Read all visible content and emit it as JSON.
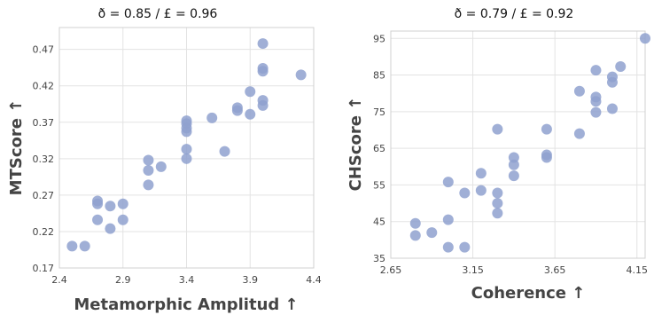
{
  "chart_data": [
    {
      "type": "scatter",
      "title": "ð = 0.85  /  £ = 0.96",
      "xlabel": "Metamorphic Amplitud ↑",
      "ylabel": "MTScore ↑",
      "xlim": [
        2.4,
        4.4
      ],
      "ylim": [
        0.17,
        0.5
      ],
      "xticks": [
        "2.4",
        "2.9",
        "3.4",
        "3.9",
        "4.4"
      ],
      "yticks": [
        "0.17",
        "0.22",
        "0.27",
        "0.32",
        "0.37",
        "0.42",
        "0.47"
      ],
      "xtick_values": [
        2.4,
        2.9,
        3.4,
        3.9,
        4.4
      ],
      "ytick_values": [
        0.17,
        0.22,
        0.27,
        0.32,
        0.37,
        0.42,
        0.47
      ],
      "grid": true,
      "color": "#8fa1cf",
      "points": [
        {
          "x": 2.5,
          "y": 0.2
        },
        {
          "x": 2.6,
          "y": 0.2
        },
        {
          "x": 2.7,
          "y": 0.262
        },
        {
          "x": 2.7,
          "y": 0.258
        },
        {
          "x": 2.7,
          "y": 0.236
        },
        {
          "x": 2.8,
          "y": 0.255
        },
        {
          "x": 2.8,
          "y": 0.224
        },
        {
          "x": 2.9,
          "y": 0.258
        },
        {
          "x": 2.9,
          "y": 0.236
        },
        {
          "x": 3.1,
          "y": 0.318
        },
        {
          "x": 3.1,
          "y": 0.304
        },
        {
          "x": 3.1,
          "y": 0.284
        },
        {
          "x": 3.2,
          "y": 0.309
        },
        {
          "x": 3.4,
          "y": 0.372
        },
        {
          "x": 3.4,
          "y": 0.368
        },
        {
          "x": 3.4,
          "y": 0.362
        },
        {
          "x": 3.4,
          "y": 0.357
        },
        {
          "x": 3.4,
          "y": 0.333
        },
        {
          "x": 3.4,
          "y": 0.32
        },
        {
          "x": 3.6,
          "y": 0.376
        },
        {
          "x": 3.7,
          "y": 0.33
        },
        {
          "x": 3.8,
          "y": 0.39
        },
        {
          "x": 3.8,
          "y": 0.386
        },
        {
          "x": 3.9,
          "y": 0.412
        },
        {
          "x": 3.9,
          "y": 0.381
        },
        {
          "x": 4.0,
          "y": 0.478
        },
        {
          "x": 4.0,
          "y": 0.444
        },
        {
          "x": 4.0,
          "y": 0.44
        },
        {
          "x": 4.0,
          "y": 0.4
        },
        {
          "x": 4.0,
          "y": 0.393
        },
        {
          "x": 4.3,
          "y": 0.435
        }
      ]
    },
    {
      "type": "scatter",
      "title": "ð = 0.79  /  £ = 0.92",
      "xlabel": "Coherence ↑",
      "ylabel": "CHScore ↑",
      "xlim": [
        2.65,
        4.2
      ],
      "ylim": [
        35,
        97
      ],
      "xticks": [
        "2.65",
        "3.15",
        "3.65",
        "4.15"
      ],
      "yticks": [
        "35",
        "45",
        "55",
        "65",
        "75",
        "85",
        "95"
      ],
      "xtick_values": [
        2.65,
        3.15,
        3.65,
        4.15
      ],
      "ytick_values": [
        35,
        45,
        55,
        65,
        75,
        85,
        95
      ],
      "grid": true,
      "color": "#8fa1cf",
      "points": [
        {
          "x": 2.8,
          "y": 44.5
        },
        {
          "x": 2.8,
          "y": 41.2
        },
        {
          "x": 2.9,
          "y": 42
        },
        {
          "x": 3.0,
          "y": 55.8
        },
        {
          "x": 3.0,
          "y": 45.5
        },
        {
          "x": 3.0,
          "y": 38
        },
        {
          "x": 3.1,
          "y": 52.8
        },
        {
          "x": 3.1,
          "y": 38
        },
        {
          "x": 3.2,
          "y": 58.2
        },
        {
          "x": 3.2,
          "y": 53.5
        },
        {
          "x": 3.3,
          "y": 70.2
        },
        {
          "x": 3.3,
          "y": 52.8
        },
        {
          "x": 3.3,
          "y": 50
        },
        {
          "x": 3.3,
          "y": 47.3
        },
        {
          "x": 3.4,
          "y": 62.5
        },
        {
          "x": 3.4,
          "y": 60.5
        },
        {
          "x": 3.4,
          "y": 57.5
        },
        {
          "x": 3.6,
          "y": 70.2
        },
        {
          "x": 3.6,
          "y": 63.2
        },
        {
          "x": 3.6,
          "y": 62.5
        },
        {
          "x": 3.8,
          "y": 80.6
        },
        {
          "x": 3.8,
          "y": 69
        },
        {
          "x": 3.9,
          "y": 86.3
        },
        {
          "x": 3.9,
          "y": 79
        },
        {
          "x": 3.9,
          "y": 77.8
        },
        {
          "x": 3.9,
          "y": 74.8
        },
        {
          "x": 4.0,
          "y": 84.5
        },
        {
          "x": 4.0,
          "y": 83
        },
        {
          "x": 4.0,
          "y": 75.8
        },
        {
          "x": 4.05,
          "y": 87.3
        },
        {
          "x": 4.2,
          "y": 95
        }
      ]
    }
  ]
}
